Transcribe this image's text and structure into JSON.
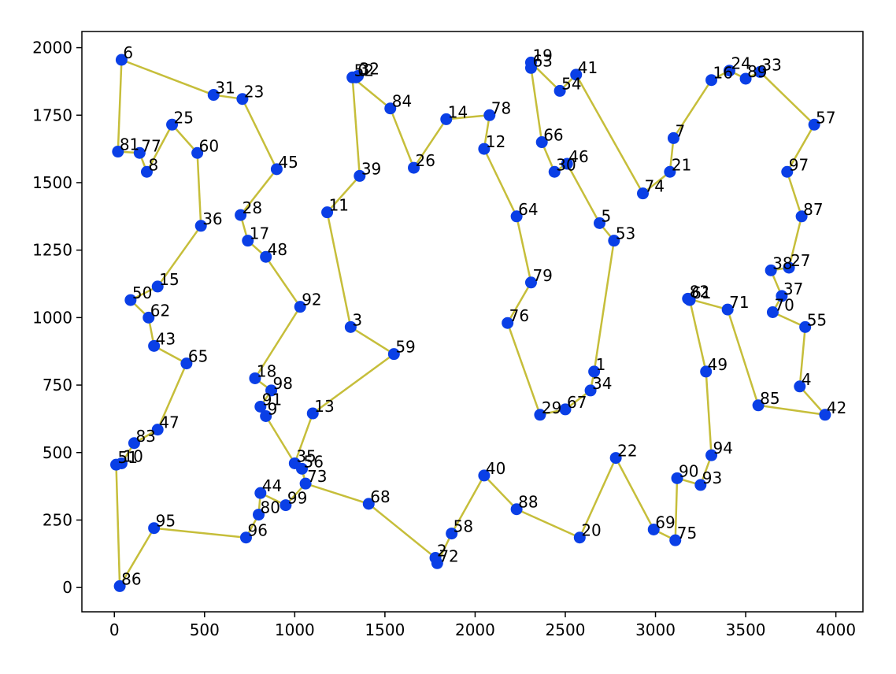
{
  "chart_data": {
    "type": "scatter",
    "title": "",
    "xlabel": "",
    "ylabel": "",
    "xlim": [
      -180,
      4150
    ],
    "ylim": [
      -90,
      2060
    ],
    "x_ticks": [
      0,
      500,
      1000,
      1500,
      2000,
      2500,
      3000,
      3500,
      4000
    ],
    "y_ticks": [
      0,
      250,
      500,
      750,
      1000,
      1250,
      1500,
      1750,
      2000
    ],
    "grid": false,
    "colors": {
      "points": "#0a3fe6",
      "route": "#c6be3a",
      "axes": "#000000"
    },
    "points": [
      {
        "id": "0",
        "x": 1340,
        "y": 1890
      },
      {
        "id": "1",
        "x": 2660,
        "y": 800
      },
      {
        "id": "2",
        "x": 1780,
        "y": 110
      },
      {
        "id": "3",
        "x": 1310,
        "y": 965
      },
      {
        "id": "4",
        "x": 3800,
        "y": 745
      },
      {
        "id": "5",
        "x": 2690,
        "y": 1350
      },
      {
        "id": "6",
        "x": 40,
        "y": 1955
      },
      {
        "id": "7",
        "x": 3100,
        "y": 1665
      },
      {
        "id": "8",
        "x": 180,
        "y": 1540
      },
      {
        "id": "9",
        "x": 840,
        "y": 635
      },
      {
        "id": "10",
        "x": 40,
        "y": 460
      },
      {
        "id": "11",
        "x": 1180,
        "y": 1390
      },
      {
        "id": "12",
        "x": 2050,
        "y": 1625
      },
      {
        "id": "13",
        "x": 1100,
        "y": 645
      },
      {
        "id": "14",
        "x": 1840,
        "y": 1735
      },
      {
        "id": "15",
        "x": 240,
        "y": 1115
      },
      {
        "id": "16",
        "x": 3310,
        "y": 1880
      },
      {
        "id": "17",
        "x": 740,
        "y": 1285
      },
      {
        "id": "18",
        "x": 780,
        "y": 775
      },
      {
        "id": "19",
        "x": 2310,
        "y": 1945
      },
      {
        "id": "20",
        "x": 2580,
        "y": 185
      },
      {
        "id": "21",
        "x": 3080,
        "y": 1540
      },
      {
        "id": "22",
        "x": 2780,
        "y": 480
      },
      {
        "id": "23",
        "x": 710,
        "y": 1810
      },
      {
        "id": "24",
        "x": 3410,
        "y": 1915
      },
      {
        "id": "25",
        "x": 320,
        "y": 1715
      },
      {
        "id": "26",
        "x": 1660,
        "y": 1555
      },
      {
        "id": "27",
        "x": 3740,
        "y": 1185
      },
      {
        "id": "28",
        "x": 700,
        "y": 1380
      },
      {
        "id": "29",
        "x": 2360,
        "y": 640
      },
      {
        "id": "30",
        "x": 2440,
        "y": 1540
      },
      {
        "id": "31",
        "x": 550,
        "y": 1825
      },
      {
        "id": "32",
        "x": 1350,
        "y": 1895
      },
      {
        "id": "33",
        "x": 3580,
        "y": 1910
      },
      {
        "id": "34",
        "x": 2640,
        "y": 730
      },
      {
        "id": "35",
        "x": 1000,
        "y": 460
      },
      {
        "id": "36",
        "x": 480,
        "y": 1340
      },
      {
        "id": "37",
        "x": 3700,
        "y": 1080
      },
      {
        "id": "38",
        "x": 3640,
        "y": 1175
      },
      {
        "id": "39",
        "x": 1360,
        "y": 1525
      },
      {
        "id": "40",
        "x": 2050,
        "y": 415
      },
      {
        "id": "41",
        "x": 2560,
        "y": 1900
      },
      {
        "id": "42",
        "x": 3940,
        "y": 640
      },
      {
        "id": "43",
        "x": 220,
        "y": 895
      },
      {
        "id": "44",
        "x": 810,
        "y": 350
      },
      {
        "id": "45",
        "x": 900,
        "y": 1550
      },
      {
        "id": "46",
        "x": 2510,
        "y": 1570
      },
      {
        "id": "47",
        "x": 240,
        "y": 585
      },
      {
        "id": "48",
        "x": 840,
        "y": 1225
      },
      {
        "id": "49",
        "x": 3280,
        "y": 800
      },
      {
        "id": "50",
        "x": 90,
        "y": 1065
      },
      {
        "id": "51",
        "x": 10,
        "y": 455
      },
      {
        "id": "52",
        "x": 1320,
        "y": 1890
      },
      {
        "id": "53",
        "x": 2770,
        "y": 1285
      },
      {
        "id": "54",
        "x": 2470,
        "y": 1840
      },
      {
        "id": "55",
        "x": 3830,
        "y": 965
      },
      {
        "id": "56",
        "x": 1040,
        "y": 440
      },
      {
        "id": "57",
        "x": 3880,
        "y": 1715
      },
      {
        "id": "58",
        "x": 1870,
        "y": 200
      },
      {
        "id": "59",
        "x": 1550,
        "y": 865
      },
      {
        "id": "60",
        "x": 460,
        "y": 1610
      },
      {
        "id": "61",
        "x": 3190,
        "y": 1065
      },
      {
        "id": "62",
        "x": 190,
        "y": 1000
      },
      {
        "id": "63",
        "x": 2310,
        "y": 1925
      },
      {
        "id": "64",
        "x": 2230,
        "y": 1375
      },
      {
        "id": "65",
        "x": 400,
        "y": 830
      },
      {
        "id": "66",
        "x": 2370,
        "y": 1650
      },
      {
        "id": "67",
        "x": 2500,
        "y": 660
      },
      {
        "id": "68",
        "x": 1410,
        "y": 310
      },
      {
        "id": "69",
        "x": 2990,
        "y": 215
      },
      {
        "id": "70",
        "x": 3650,
        "y": 1020
      },
      {
        "id": "71",
        "x": 3400,
        "y": 1030
      },
      {
        "id": "72",
        "x": 1790,
        "y": 90
      },
      {
        "id": "73",
        "x": 1060,
        "y": 385
      },
      {
        "id": "74",
        "x": 2930,
        "y": 1460
      },
      {
        "id": "75",
        "x": 3110,
        "y": 175
      },
      {
        "id": "76",
        "x": 2180,
        "y": 980
      },
      {
        "id": "77",
        "x": 140,
        "y": 1610
      },
      {
        "id": "78",
        "x": 2080,
        "y": 1750
      },
      {
        "id": "79",
        "x": 2310,
        "y": 1130
      },
      {
        "id": "80",
        "x": 800,
        "y": 270
      },
      {
        "id": "81",
        "x": 20,
        "y": 1615
      },
      {
        "id": "82",
        "x": 3180,
        "y": 1070
      },
      {
        "id": "83",
        "x": 110,
        "y": 535
      },
      {
        "id": "84",
        "x": 1530,
        "y": 1775
      },
      {
        "id": "85",
        "x": 3570,
        "y": 675
      },
      {
        "id": "86",
        "x": 30,
        "y": 5
      },
      {
        "id": "87",
        "x": 3810,
        "y": 1375
      },
      {
        "id": "88",
        "x": 2230,
        "y": 290
      },
      {
        "id": "89",
        "x": 3500,
        "y": 1885
      },
      {
        "id": "90",
        "x": 3120,
        "y": 405
      },
      {
        "id": "91",
        "x": 810,
        "y": 670
      },
      {
        "id": "92",
        "x": 1030,
        "y": 1040
      },
      {
        "id": "93",
        "x": 3250,
        "y": 380
      },
      {
        "id": "94",
        "x": 3310,
        "y": 490
      },
      {
        "id": "95",
        "x": 220,
        "y": 220
      },
      {
        "id": "96",
        "x": 730,
        "y": 185
      },
      {
        "id": "97",
        "x": 3730,
        "y": 1540
      },
      {
        "id": "98",
        "x": 870,
        "y": 730
      },
      {
        "id": "99",
        "x": 950,
        "y": 305
      }
    ],
    "route": [
      "6",
      "31",
      "23",
      "45",
      "28",
      "17",
      "48",
      "92",
      "18",
      "98",
      "91",
      "9",
      "35",
      "56",
      "73",
      "99",
      "44",
      "80",
      "96",
      "95",
      "86",
      "51",
      "10",
      "83",
      "47",
      "65",
      "43",
      "62",
      "50",
      "15",
      "36",
      "60",
      "25",
      "8",
      "77",
      "81",
      "6"
    ],
    "route_main": [
      "32",
      "0",
      "52",
      "39",
      "11",
      "3",
      "59",
      "13",
      "35",
      "56",
      "73",
      "68",
      "2",
      "72",
      "58",
      "40",
      "88",
      "20",
      "22",
      "69",
      "75",
      "90",
      "93",
      "94",
      "49",
      "61",
      "82",
      "71",
      "85",
      "42",
      "4",
      "55",
      "70",
      "37",
      "38",
      "27",
      "87",
      "97",
      "57",
      "33",
      "89",
      "24",
      "16",
      "7",
      "21",
      "74",
      "41",
      "54",
      "19",
      "63",
      "66",
      "30",
      "46",
      "5",
      "53",
      "1",
      "34",
      "67",
      "29",
      "76",
      "79",
      "64",
      "12",
      "78",
      "14",
      "26",
      "84",
      "52"
    ]
  }
}
